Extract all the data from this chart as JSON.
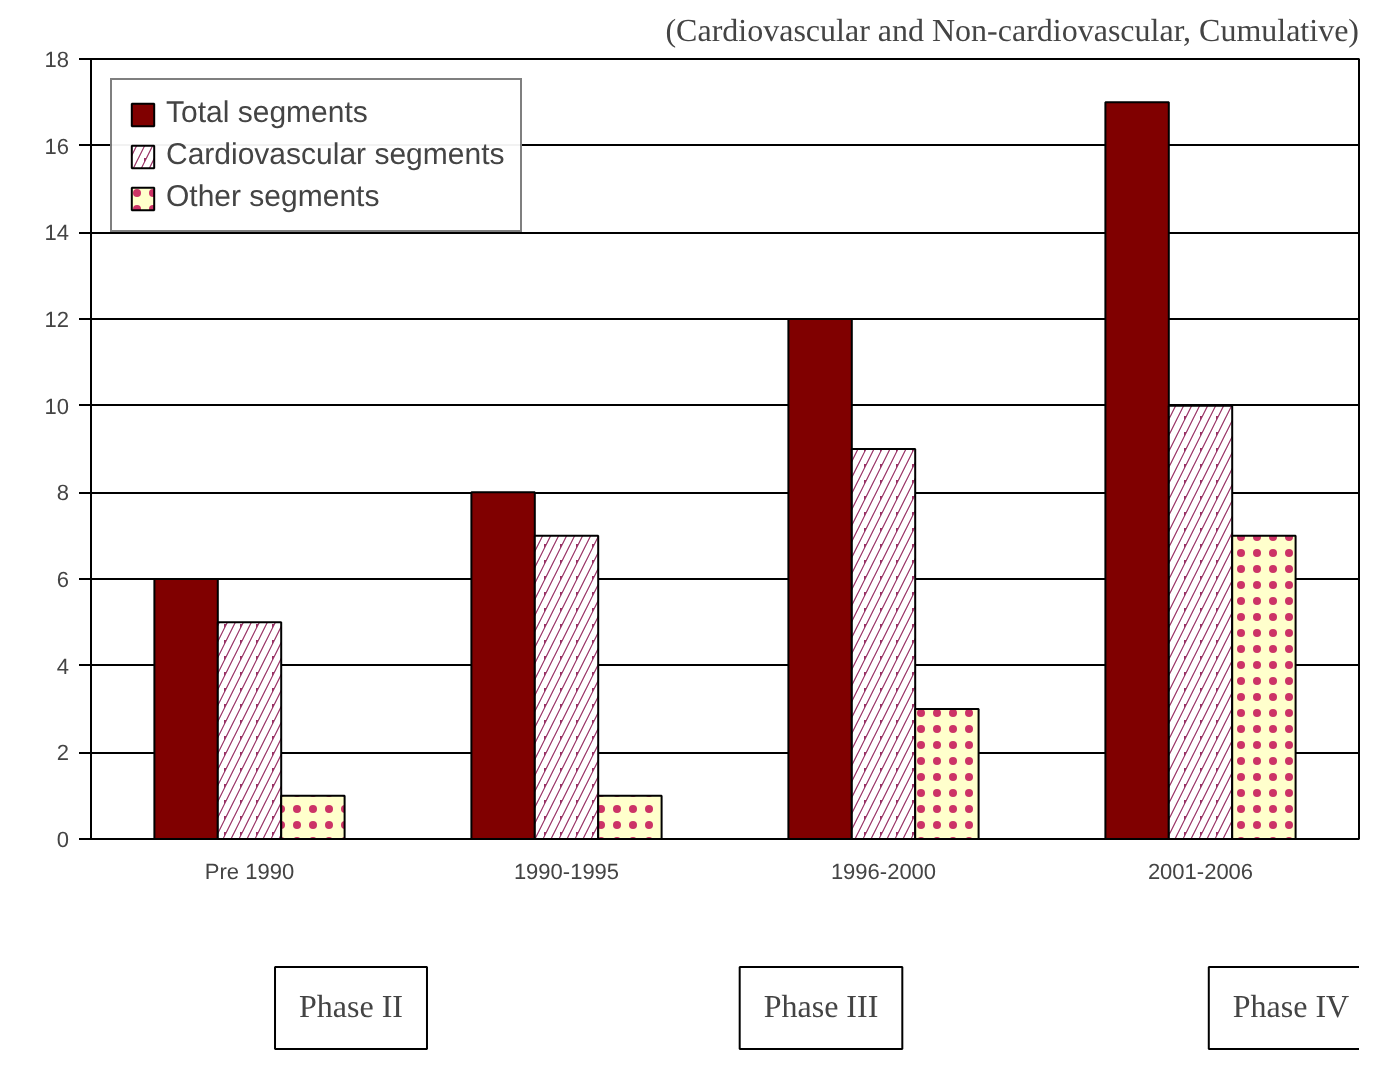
{
  "chart_data": {
    "type": "bar",
    "subtitle": "(Cardiovascular and Non-cardiovascular, Cumulative)",
    "categories": [
      "Pre 1990",
      "1990-1995",
      "1996-2000",
      "2001-2006"
    ],
    "series": [
      {
        "name": "Total segments",
        "color": "#800000",
        "values": [
          6,
          8,
          12,
          17
        ]
      },
      {
        "name": "Cardiovascular segments",
        "color": "#993366",
        "values": [
          5,
          7,
          9,
          10
        ]
      },
      {
        "name": "Other segments",
        "color": "#ffffcc",
        "values": [
          1,
          1,
          3,
          7
        ]
      }
    ],
    "ylim": [
      0,
      18
    ],
    "yticks": [
      0,
      2,
      4,
      6,
      8,
      10,
      12,
      14,
      16,
      18
    ],
    "grid": "y",
    "legend": "top left",
    "annotations": [
      "Phase II",
      "Phase III",
      "Phase IV"
    ]
  }
}
